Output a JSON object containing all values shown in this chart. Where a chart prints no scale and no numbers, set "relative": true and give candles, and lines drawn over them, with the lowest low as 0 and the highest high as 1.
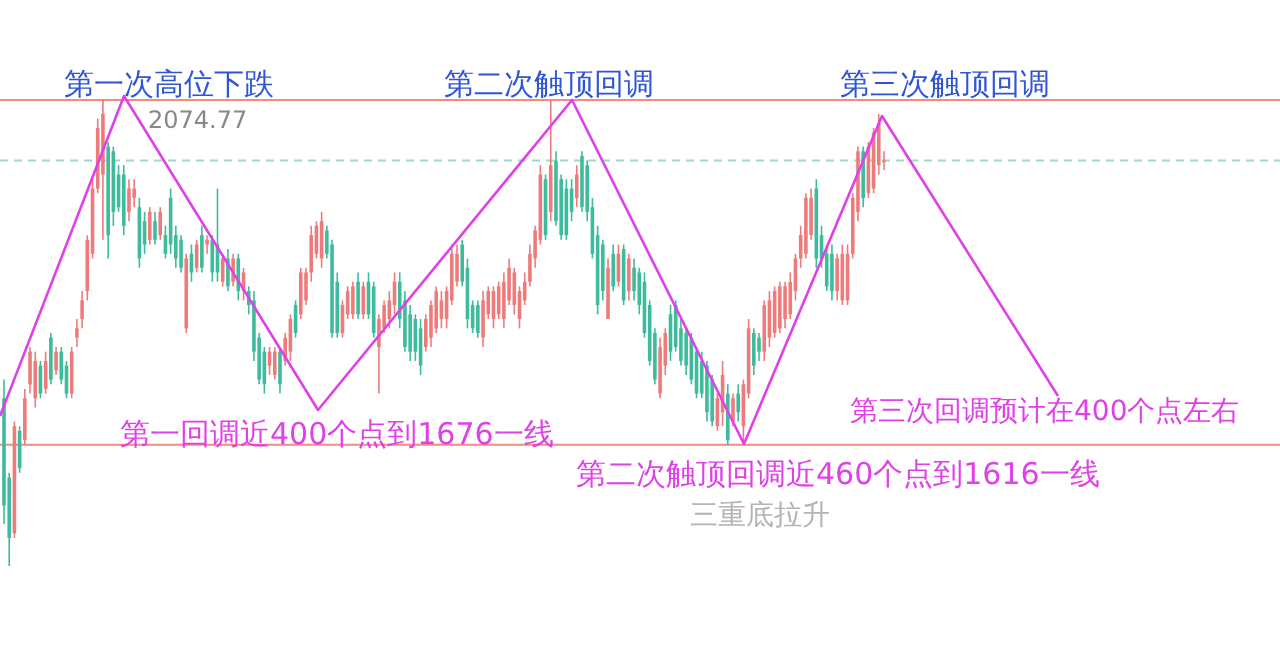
{
  "chart_data": {
    "type": "candlestick",
    "relative": true,
    "categories": [
      null,
      null,
      null,
      null,
      null,
      null,
      null,
      null,
      null,
      null,
      null,
      null,
      null,
      null,
      null,
      null,
      null,
      null,
      null,
      null,
      null,
      null,
      null,
      null,
      null,
      null,
      null,
      null,
      null,
      null,
      null,
      null,
      null,
      null,
      null,
      null,
      null,
      null,
      null,
      null,
      null,
      null,
      null,
      null,
      null,
      null,
      null,
      null,
      null,
      null,
      null,
      null,
      null,
      null,
      null,
      null,
      null,
      null,
      null,
      null,
      null,
      null,
      null,
      null,
      null,
      null,
      null,
      null,
      null,
      null,
      null,
      null,
      null,
      null,
      null,
      null,
      null,
      null,
      null,
      null,
      null,
      null,
      null,
      null,
      null,
      null,
      null,
      null,
      null,
      null,
      null,
      null,
      null,
      null,
      null,
      null,
      null,
      null,
      null,
      null,
      null,
      null,
      null,
      null,
      null,
      null,
      null,
      null,
      null,
      null,
      null,
      null,
      null,
      null,
      null,
      null,
      null,
      null,
      null,
      null,
      null,
      null,
      null,
      null,
      null,
      null,
      null,
      null,
      null,
      null,
      null,
      null,
      null,
      null,
      null,
      null,
      null,
      null,
      null,
      null,
      null,
      null,
      null,
      null,
      null,
      null,
      null,
      null,
      null,
      null,
      null,
      null,
      null,
      null,
      null,
      null,
      null,
      null,
      null,
      null,
      null,
      null,
      null,
      null,
      null,
      null,
      null,
      null,
      null,
      null
    ],
    "ohlc": [
      [
        0.36,
        0.4,
        0.09,
        0.13
      ],
      [
        0.19,
        0.2,
        0.0,
        0.06
      ],
      [
        0.07,
        0.31,
        0.06,
        0.3
      ],
      [
        0.29,
        0.3,
        0.2,
        0.21
      ],
      [
        0.27,
        0.38,
        0.26,
        0.36
      ],
      [
        0.39,
        0.47,
        0.37,
        0.46
      ],
      [
        0.36,
        0.46,
        0.34,
        0.44
      ],
      [
        0.43,
        0.44,
        0.36,
        0.37
      ],
      [
        0.38,
        0.46,
        0.37,
        0.44
      ],
      [
        0.49,
        0.5,
        0.39,
        0.4
      ],
      [
        0.42,
        0.47,
        0.41,
        0.46
      ],
      [
        0.46,
        0.47,
        0.39,
        0.4
      ],
      [
        0.43,
        0.44,
        0.36,
        0.37
      ],
      [
        0.37,
        0.47,
        0.36,
        0.46
      ],
      [
        0.49,
        0.53,
        0.47,
        0.51
      ],
      [
        0.53,
        0.59,
        0.51,
        0.57
      ],
      [
        0.59,
        0.71,
        0.57,
        0.7
      ],
      [
        0.67,
        0.83,
        0.66,
        0.81
      ],
      [
        0.81,
        0.96,
        0.8,
        0.94
      ],
      [
        0.84,
        1.0,
        0.7,
        0.97
      ],
      [
        0.9,
        0.91,
        0.66,
        0.71
      ],
      [
        0.89,
        0.9,
        0.73,
        0.76
      ],
      [
        0.84,
        0.86,
        0.76,
        0.77
      ],
      [
        0.84,
        0.86,
        0.71,
        0.73
      ],
      [
        0.76,
        0.83,
        0.74,
        0.81
      ],
      [
        0.79,
        0.83,
        0.77,
        0.81
      ],
      [
        0.77,
        0.79,
        0.64,
        0.66
      ],
      [
        0.74,
        0.76,
        0.67,
        0.69
      ],
      [
        0.7,
        0.77,
        0.69,
        0.76
      ],
      [
        0.74,
        0.76,
        0.69,
        0.7
      ],
      [
        0.71,
        0.77,
        0.7,
        0.76
      ],
      [
        0.71,
        0.73,
        0.66,
        0.67
      ],
      [
        0.79,
        0.81,
        0.67,
        0.69
      ],
      [
        0.71,
        0.73,
        0.64,
        0.66
      ],
      [
        0.7,
        0.71,
        0.63,
        0.64
      ],
      [
        0.51,
        0.67,
        0.5,
        0.66
      ],
      [
        0.67,
        0.69,
        0.61,
        0.63
      ],
      [
        0.64,
        0.7,
        0.63,
        0.69
      ],
      [
        0.71,
        0.73,
        0.63,
        0.64
      ],
      [
        0.69,
        0.71,
        0.67,
        0.7
      ],
      [
        0.7,
        0.71,
        0.61,
        0.63
      ],
      [
        0.69,
        0.81,
        0.61,
        0.63
      ],
      [
        0.61,
        0.67,
        0.6,
        0.66
      ],
      [
        0.66,
        0.68,
        0.59,
        0.6
      ],
      [
        0.61,
        0.67,
        0.6,
        0.66
      ],
      [
        0.66,
        0.67,
        0.57,
        0.59
      ],
      [
        0.59,
        0.64,
        0.57,
        0.63
      ],
      [
        0.59,
        0.6,
        0.54,
        0.56
      ],
      [
        0.57,
        0.59,
        0.44,
        0.46
      ],
      [
        0.49,
        0.5,
        0.39,
        0.4
      ],
      [
        0.46,
        0.47,
        0.37,
        0.39
      ],
      [
        0.43,
        0.47,
        0.41,
        0.46
      ],
      [
        0.41,
        0.47,
        0.4,
        0.46
      ],
      [
        0.46,
        0.47,
        0.37,
        0.39
      ],
      [
        0.44,
        0.5,
        0.43,
        0.49
      ],
      [
        0.46,
        0.54,
        0.44,
        0.53
      ],
      [
        0.56,
        0.57,
        0.49,
        0.5
      ],
      [
        0.54,
        0.64,
        0.53,
        0.63
      ],
      [
        0.57,
        0.64,
        0.56,
        0.63
      ],
      [
        0.63,
        0.73,
        0.61,
        0.71
      ],
      [
        0.67,
        0.74,
        0.66,
        0.73
      ],
      [
        0.66,
        0.76,
        0.64,
        0.74
      ],
      [
        0.72,
        0.73,
        0.66,
        0.67
      ],
      [
        0.69,
        0.7,
        0.49,
        0.5
      ],
      [
        0.61,
        0.63,
        0.49,
        0.5
      ],
      [
        0.5,
        0.57,
        0.49,
        0.56
      ],
      [
        0.54,
        0.6,
        0.53,
        0.59
      ],
      [
        0.54,
        0.61,
        0.53,
        0.6
      ],
      [
        0.61,
        0.63,
        0.53,
        0.54
      ],
      [
        0.54,
        0.61,
        0.53,
        0.6
      ],
      [
        0.61,
        0.63,
        0.53,
        0.54
      ],
      [
        0.6,
        0.61,
        0.49,
        0.5
      ],
      [
        0.47,
        0.54,
        0.37,
        0.53
      ],
      [
        0.51,
        0.57,
        0.5,
        0.56
      ],
      [
        0.53,
        0.59,
        0.51,
        0.57
      ],
      [
        0.56,
        0.63,
        0.54,
        0.61
      ],
      [
        0.61,
        0.63,
        0.51,
        0.53
      ],
      [
        0.57,
        0.59,
        0.46,
        0.47
      ],
      [
        0.54,
        0.56,
        0.44,
        0.46
      ],
      [
        0.53,
        0.54,
        0.44,
        0.46
      ],
      [
        0.51,
        0.53,
        0.41,
        0.43
      ],
      [
        0.47,
        0.54,
        0.46,
        0.53
      ],
      [
        0.49,
        0.57,
        0.47,
        0.56
      ],
      [
        0.51,
        0.6,
        0.5,
        0.59
      ],
      [
        0.53,
        0.59,
        0.51,
        0.57
      ],
      [
        0.53,
        0.6,
        0.51,
        0.59
      ],
      [
        0.57,
        0.69,
        0.56,
        0.67
      ],
      [
        0.61,
        0.69,
        0.6,
        0.67
      ],
      [
        0.69,
        0.7,
        0.6,
        0.61
      ],
      [
        0.64,
        0.66,
        0.51,
        0.53
      ],
      [
        0.56,
        0.57,
        0.5,
        0.51
      ],
      [
        0.56,
        0.57,
        0.49,
        0.5
      ],
      [
        0.49,
        0.59,
        0.47,
        0.57
      ],
      [
        0.54,
        0.6,
        0.53,
        0.59
      ],
      [
        0.53,
        0.6,
        0.51,
        0.59
      ],
      [
        0.54,
        0.61,
        0.53,
        0.6
      ],
      [
        0.53,
        0.63,
        0.51,
        0.61
      ],
      [
        0.57,
        0.66,
        0.56,
        0.64
      ],
      [
        0.56,
        0.64,
        0.54,
        0.63
      ],
      [
        0.53,
        0.6,
        0.51,
        0.59
      ],
      [
        0.57,
        0.63,
        0.56,
        0.61
      ],
      [
        0.61,
        0.69,
        0.6,
        0.67
      ],
      [
        0.66,
        0.73,
        0.64,
        0.72
      ],
      [
        0.7,
        0.86,
        0.69,
        0.84
      ],
      [
        0.83,
        0.84,
        0.7,
        0.71
      ],
      [
        0.76,
        1.0,
        0.74,
        0.86
      ],
      [
        0.87,
        0.89,
        0.73,
        0.74
      ],
      [
        0.83,
        0.84,
        0.7,
        0.71
      ],
      [
        0.81,
        0.83,
        0.7,
        0.71
      ],
      [
        0.81,
        0.83,
        0.74,
        0.76
      ],
      [
        0.79,
        0.86,
        0.77,
        0.84
      ],
      [
        0.88,
        0.89,
        0.76,
        0.77
      ],
      [
        0.86,
        0.87,
        0.74,
        0.76
      ],
      [
        0.77,
        0.79,
        0.66,
        0.67
      ],
      [
        0.71,
        0.73,
        0.54,
        0.56
      ],
      [
        0.69,
        0.7,
        0.57,
        0.59
      ],
      [
        0.53,
        0.66,
        0.53,
        0.64
      ],
      [
        0.67,
        0.69,
        0.59,
        0.6
      ],
      [
        0.61,
        0.69,
        0.6,
        0.67
      ],
      [
        0.68,
        0.69,
        0.56,
        0.57
      ],
      [
        0.59,
        0.67,
        0.57,
        0.66
      ],
      [
        0.64,
        0.66,
        0.57,
        0.59
      ],
      [
        0.63,
        0.64,
        0.54,
        0.56
      ],
      [
        0.61,
        0.63,
        0.49,
        0.5
      ],
      [
        0.56,
        0.57,
        0.43,
        0.44
      ],
      [
        0.5,
        0.51,
        0.39,
        0.4
      ],
      [
        0.37,
        0.49,
        0.36,
        0.47
      ],
      [
        0.43,
        0.51,
        0.41,
        0.5
      ],
      [
        0.54,
        0.56,
        0.44,
        0.46
      ],
      [
        0.56,
        0.57,
        0.46,
        0.47
      ],
      [
        0.51,
        0.53,
        0.43,
        0.44
      ],
      [
        0.5,
        0.51,
        0.41,
        0.43
      ],
      [
        0.49,
        0.5,
        0.39,
        0.4
      ],
      [
        0.46,
        0.47,
        0.36,
        0.37
      ],
      [
        0.44,
        0.46,
        0.36,
        0.37
      ],
      [
        0.43,
        0.44,
        0.31,
        0.33
      ],
      [
        0.4,
        0.41,
        0.3,
        0.31
      ],
      [
        0.3,
        0.37,
        0.29,
        0.36
      ],
      [
        0.33,
        0.44,
        0.3,
        0.41
      ],
      [
        0.37,
        0.39,
        0.26,
        0.27
      ],
      [
        0.31,
        0.37,
        0.3,
        0.36
      ],
      [
        0.37,
        0.39,
        0.31,
        0.33
      ],
      [
        0.3,
        0.4,
        0.26,
        0.39
      ],
      [
        0.37,
        0.53,
        0.36,
        0.51
      ],
      [
        0.5,
        0.51,
        0.41,
        0.43
      ],
      [
        0.49,
        0.5,
        0.44,
        0.46
      ],
      [
        0.46,
        0.57,
        0.44,
        0.56
      ],
      [
        0.49,
        0.59,
        0.47,
        0.57
      ],
      [
        0.5,
        0.6,
        0.49,
        0.59
      ],
      [
        0.51,
        0.61,
        0.5,
        0.6
      ],
      [
        0.53,
        0.61,
        0.51,
        0.6
      ],
      [
        0.54,
        0.63,
        0.53,
        0.61
      ],
      [
        0.59,
        0.67,
        0.57,
        0.66
      ],
      [
        0.66,
        0.73,
        0.64,
        0.71
      ],
      [
        0.67,
        0.8,
        0.66,
        0.79
      ],
      [
        0.71,
        0.81,
        0.7,
        0.79
      ],
      [
        0.81,
        0.83,
        0.64,
        0.66
      ],
      [
        0.71,
        0.73,
        0.64,
        0.66
      ],
      [
        0.67,
        0.69,
        0.59,
        0.6
      ],
      [
        0.67,
        0.69,
        0.57,
        0.59
      ],
      [
        0.59,
        0.67,
        0.57,
        0.66
      ],
      [
        0.57,
        0.69,
        0.56,
        0.67
      ],
      [
        0.57,
        0.69,
        0.56,
        0.67
      ],
      [
        0.67,
        0.8,
        0.66,
        0.79
      ],
      [
        0.76,
        0.9,
        0.74,
        0.89
      ],
      [
        0.89,
        0.9,
        0.77,
        0.79
      ],
      [
        0.8,
        0.91,
        0.79,
        0.9
      ],
      [
        0.81,
        0.94,
        0.8,
        0.93
      ],
      [
        0.86,
        0.97,
        0.84,
        0.95
      ],
      [
        0.87,
        0.89,
        0.85,
        0.87
      ]
    ],
    "ref_lines": [
      {
        "axis": "y",
        "value": 1.0,
        "color": "#f28b82"
      },
      {
        "axis": "y",
        "value": 0.26,
        "color": "#f28b82"
      },
      {
        "axis": "y",
        "value": 0.87,
        "color": "#9ed9c8",
        "line_style": "dashed"
      }
    ],
    "annotations": [
      "第一次高位下跌",
      "2074.77",
      "第二次触顶回调",
      "第三次触顶回调",
      "第一回调近400个点到1676一线",
      "第二次触顶回调近460个点到1616一线",
      "第三次回调预计在400个点左右",
      "三重底拉升"
    ]
  }
}
